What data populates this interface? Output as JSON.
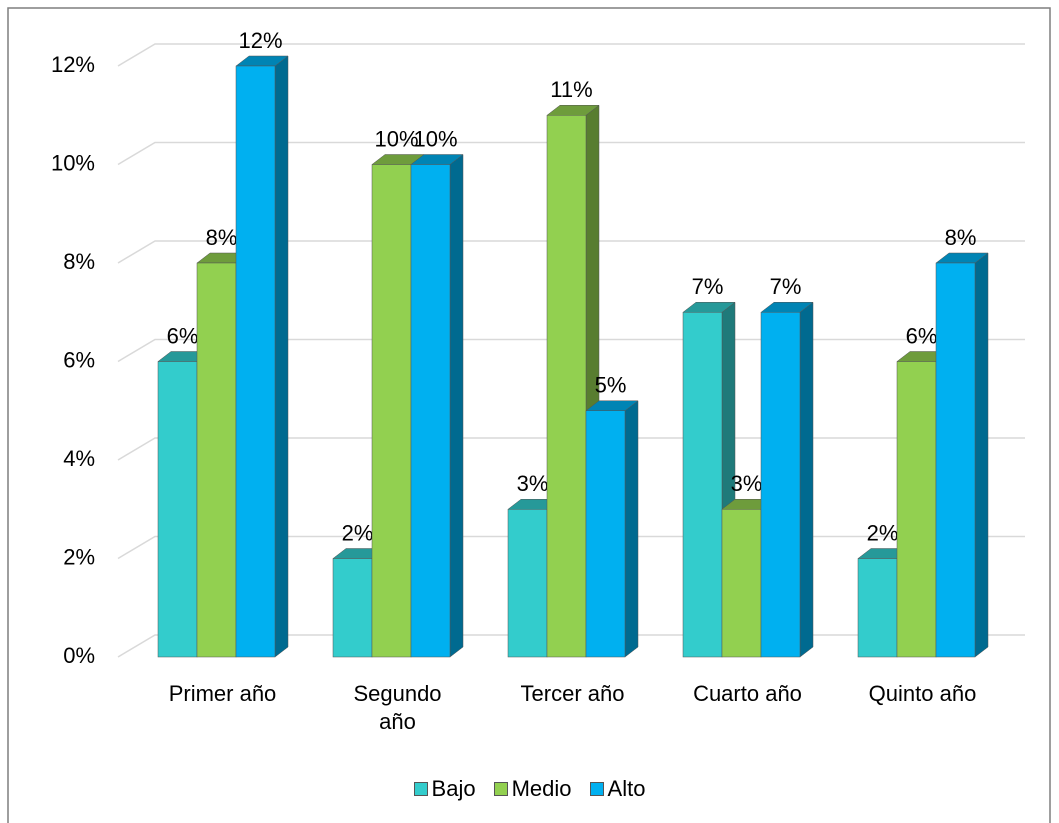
{
  "chart_data": {
    "type": "bar3d",
    "categories": [
      "Primer año",
      "Segundo año",
      "Tercer año",
      "Cuarto año",
      "Quinto año"
    ],
    "series": [
      {
        "name": "Bajo",
        "color": "#33CCCC",
        "values": [
          6,
          2,
          3,
          7,
          2
        ],
        "value_labels": [
          "6%",
          "2%",
          "3%",
          "7%",
          "2%"
        ]
      },
      {
        "name": "Medio",
        "color": "#92D050",
        "values": [
          8,
          10,
          11,
          3,
          6
        ],
        "value_labels": [
          "8%",
          "10%",
          "11%",
          "3%",
          "6%"
        ]
      },
      {
        "name": "Alto",
        "color": "#00B0F0",
        "values": [
          12,
          10,
          5,
          7,
          8
        ],
        "value_labels": [
          "12%",
          "10%",
          "5%",
          "7%",
          "8%"
        ]
      }
    ],
    "ylim": [
      0,
      12
    ],
    "yticks": [
      {
        "value": 0,
        "label": "0%"
      },
      {
        "value": 2,
        "label": "2%"
      },
      {
        "value": 4,
        "label": "4%"
      },
      {
        "value": 6,
        "label": "6%"
      },
      {
        "value": 8,
        "label": "8%"
      },
      {
        "value": 10,
        "label": "10%"
      },
      {
        "value": 12,
        "label": "12%"
      }
    ],
    "grid": true,
    "legend": "bottom"
  }
}
